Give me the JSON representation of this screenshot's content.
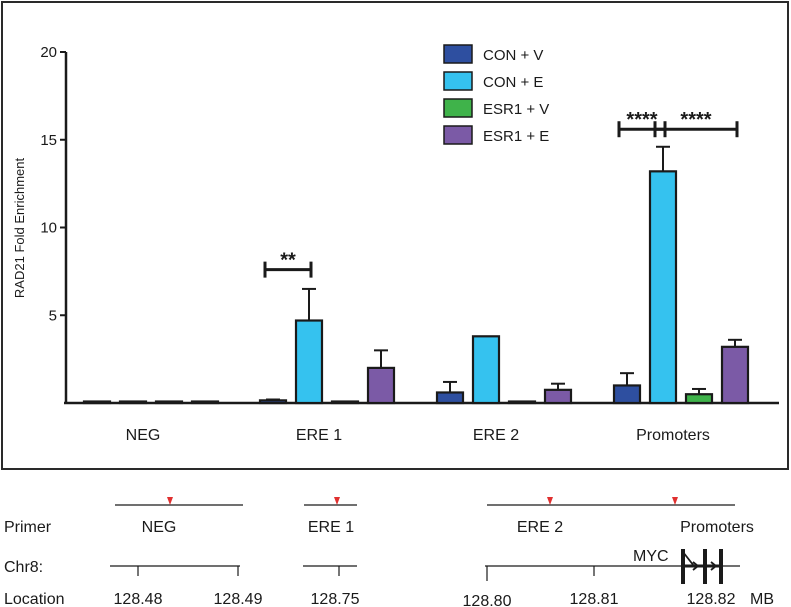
{
  "chart_data": {
    "type": "bar",
    "title": "",
    "xlabel": "",
    "ylabel": "RAD21 Fold Enrichment",
    "ylim": [
      0,
      20
    ],
    "yticks": [
      5,
      10,
      15,
      20
    ],
    "categories": [
      "NEG",
      "ERE 1",
      "ERE 2",
      "Promoters"
    ],
    "series": [
      {
        "name": "CON + V",
        "color": "#2e4fa0",
        "values": [
          0.05,
          0.15,
          0.6,
          1.0
        ],
        "errors": [
          0.0,
          0.05,
          0.6,
          0.7
        ]
      },
      {
        "name": "CON + E",
        "color": "#35c2ef",
        "values": [
          0.05,
          4.7,
          3.8,
          13.2
        ],
        "errors": [
          0.0,
          1.8,
          0.0,
          1.4
        ]
      },
      {
        "name": "ESR1 + V",
        "color": "#3fb34a",
        "values": [
          0.05,
          0.05,
          0.05,
          0.5
        ],
        "errors": [
          0.0,
          0.0,
          0.0,
          0.3
        ]
      },
      {
        "name": "ESR1 + E",
        "color": "#7b5aa6",
        "values": [
          0.05,
          2.0,
          0.75,
          3.2
        ],
        "errors": [
          0.0,
          1.0,
          0.35,
          0.4
        ]
      }
    ],
    "legend_position": "top-right",
    "significance": [
      {
        "category": "ERE 1",
        "from_series": 0,
        "to_series": 1,
        "label": "**",
        "y": 7.6
      },
      {
        "category": "Promoters",
        "from_series": 0,
        "to_series": 1,
        "label": "****",
        "y": 15.6
      },
      {
        "category": "Promoters",
        "from_series": 1,
        "to_series": 3,
        "label": "****",
        "y": 15.6
      }
    ]
  },
  "map": {
    "primer_label": "Primer",
    "chr_label": "Chr8:",
    "location_label": "Location",
    "unit_label": "MB",
    "gene_label": "MYC",
    "marker_color": "#e0302f",
    "primers": [
      "NEG",
      "ERE 1",
      "ERE 2",
      "Promoters"
    ],
    "locations": [
      "128.48",
      "128.49",
      "128.75",
      "128.80",
      "128.81",
      "128.82"
    ]
  }
}
